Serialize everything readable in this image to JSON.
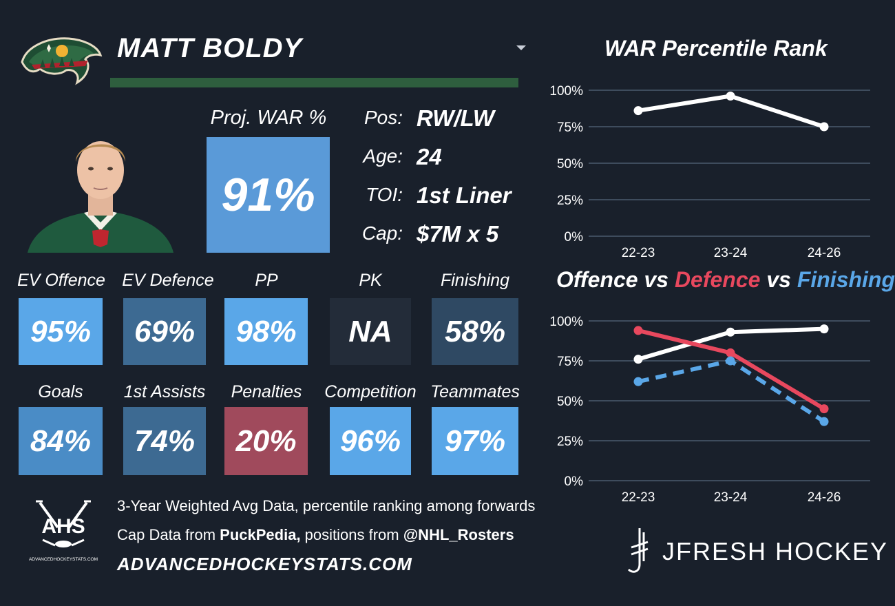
{
  "player": {
    "name": "MATT BOLDY",
    "proj_war_label": "Proj. WAR %",
    "proj_war_value": "91%",
    "info": [
      {
        "label": "Pos:",
        "value": "RW/LW"
      },
      {
        "label": "Age:",
        "value": "24"
      },
      {
        "label": "TOI:",
        "value": "1st Liner"
      },
      {
        "label": "Cap:",
        "value": "$7M x 5"
      }
    ]
  },
  "tiles_row1": [
    {
      "label": "EV Offence",
      "value": "95%",
      "color": "#5aa7e8"
    },
    {
      "label": "EV Defence",
      "value": "69%",
      "color": "#3d6a92"
    },
    {
      "label": "PP",
      "value": "98%",
      "color": "#5aa7e8"
    },
    {
      "label": "PK",
      "value": "NA",
      "color": "#232c39"
    },
    {
      "label": "Finishing",
      "value": "58%",
      "color": "#2f4963"
    }
  ],
  "tiles_row2": [
    {
      "label": "Goals",
      "value": "84%",
      "color": "#4a8cc6"
    },
    {
      "label": "1st Assists",
      "value": "74%",
      "color": "#3d6a92"
    },
    {
      "label": "Penalties",
      "value": "20%",
      "color": "#a04a5c"
    },
    {
      "label": "Competition",
      "value": "96%",
      "color": "#5aa7e8"
    },
    {
      "label": "Teammates",
      "value": "97%",
      "color": "#5aa7e8"
    }
  ],
  "footer": {
    "ahs_logo_text": "AHS",
    "ahs_logo_sub": "ADVANCEDHOCKEYSTATS.COM",
    "line1": "3-Year Weighted Avg Data, percentile ranking among forwards",
    "line2_pre": "Cap Data from ",
    "line2_bold1": "PuckPedia,",
    "line2_mid": " positions from ",
    "line2_bold2": "@NHL_Rosters",
    "site": "ADVANCEDHOCKEYSTATS.COM",
    "brand": "JFRESH HOCKEY"
  },
  "chart_data": [
    {
      "type": "line",
      "title": "WAR Percentile Rank",
      "categories": [
        "22-23",
        "23-24",
        "24-26"
      ],
      "series": [
        {
          "values": [
            86,
            96,
            75
          ],
          "color": "#ffffff"
        }
      ],
      "ylim": [
        0,
        100
      ],
      "yticks": [
        "100%",
        "75%",
        "50%",
        "25%",
        "0%"
      ],
      "grid": true
    },
    {
      "type": "line",
      "title_parts": [
        {
          "text": "Offence",
          "color": "#ffffff"
        },
        {
          "text": " vs ",
          "color": "#ffffff"
        },
        {
          "text": "Defence",
          "color": "#e8485e"
        },
        {
          "text": " vs ",
          "color": "#ffffff"
        },
        {
          "text": "Finishing",
          "color": "#5aa7e8"
        }
      ],
      "categories": [
        "22-23",
        "23-24",
        "24-26"
      ],
      "series": [
        {
          "name": "Offence",
          "values": [
            76,
            93,
            95
          ],
          "color": "#ffffff",
          "dashed": false
        },
        {
          "name": "Defence",
          "values": [
            94,
            80,
            45
          ],
          "color": "#e8485e",
          "dashed": false
        },
        {
          "name": "Finishing",
          "values": [
            62,
            75,
            37
          ],
          "color": "#5aa7e8",
          "dashed": true
        }
      ],
      "ylim": [
        0,
        100
      ],
      "yticks": [
        "100%",
        "75%",
        "50%",
        "25%",
        "0%"
      ],
      "grid": true
    }
  ]
}
